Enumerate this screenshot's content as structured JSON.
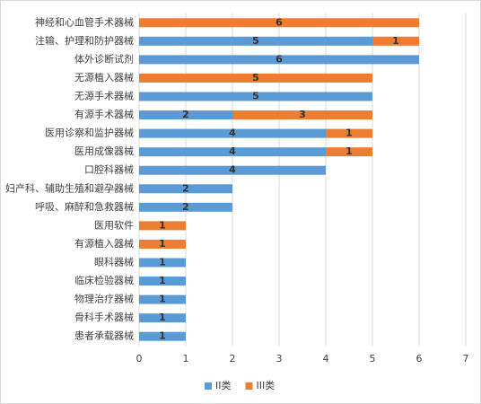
{
  "chart_data": {
    "type": "stacked_bar_horizontal",
    "categories": [
      "神经和心血管手术器械",
      "注输、护理和防护器械",
      "体外诊断试剂",
      "无源植入器械",
      "无源手术器械",
      "有源手术器械",
      "医用诊察和监护器械",
      "医用成像器械",
      "口腔科器械",
      "妇产科、辅助生殖和避孕器械",
      "呼吸、麻醉和急救器械",
      "医用软件",
      "有源植入器械",
      "眼科器械",
      "临床检验器械",
      "物理治疗器械",
      "骨科手术器械",
      "患者承载器械"
    ],
    "series": [
      {
        "name": "II类",
        "color": "#5b9bd5",
        "values": [
          null,
          5,
          6,
          null,
          5,
          2,
          4,
          4,
          4,
          2,
          2,
          null,
          null,
          1,
          1,
          1,
          1,
          1
        ]
      },
      {
        "name": "III类",
        "color": "#ed7d31",
        "values": [
          6,
          1,
          null,
          5,
          null,
          3,
          1,
          1,
          null,
          null,
          null,
          1,
          1,
          null,
          null,
          null,
          null,
          null
        ]
      }
    ],
    "xlim": [
      0,
      7
    ],
    "xticks": [
      0,
      1,
      2,
      3,
      4,
      5,
      6,
      7
    ],
    "grid": true,
    "legend": "bottom"
  }
}
